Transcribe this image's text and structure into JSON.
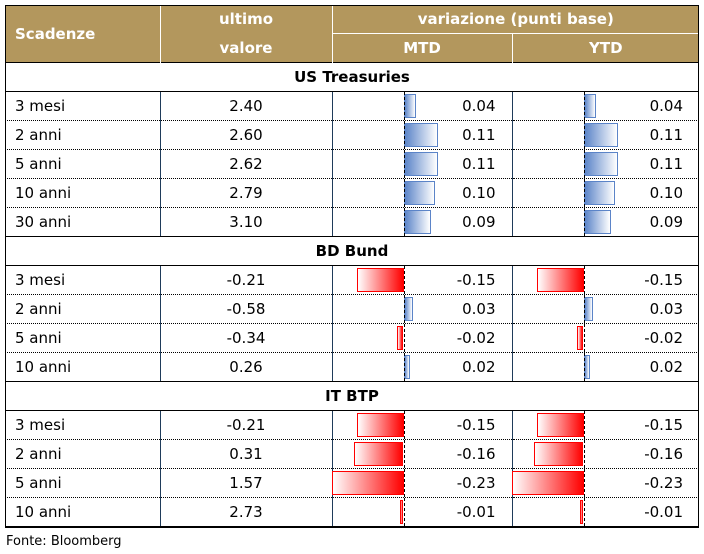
{
  "header": {
    "col1": "Scadenze",
    "col2_line1": "ultimo",
    "col2_line2": "valore",
    "group": "variazione (punti base)",
    "mtd": "MTD",
    "ytd": "YTD"
  },
  "colors": {
    "header_bg": "#b3975d",
    "positive_bar": "#5b84c8",
    "negative_bar": "#ff0000"
  },
  "sections": [
    {
      "title": "US Treasuries",
      "rows": [
        {
          "scadenza": "3 mesi",
          "valore": "2.40",
          "mtd": 0.04,
          "ytd": 0.04
        },
        {
          "scadenza": "2 anni",
          "valore": "2.60",
          "mtd": 0.11,
          "ytd": 0.11
        },
        {
          "scadenza": "5 anni",
          "valore": "2.62",
          "mtd": 0.11,
          "ytd": 0.11
        },
        {
          "scadenza": "10 anni",
          "valore": "2.79",
          "mtd": 0.1,
          "ytd": 0.1
        },
        {
          "scadenza": "30 anni",
          "valore": "3.10",
          "mtd": 0.09,
          "ytd": 0.09
        }
      ]
    },
    {
      "title": "BD Bund",
      "rows": [
        {
          "scadenza": "3 mesi",
          "valore": "-0.21",
          "mtd": -0.15,
          "ytd": -0.15
        },
        {
          "scadenza": "2 anni",
          "valore": "-0.58",
          "mtd": 0.03,
          "ytd": 0.03
        },
        {
          "scadenza": "5 anni",
          "valore": "-0.34",
          "mtd": -0.02,
          "ytd": -0.02
        },
        {
          "scadenza": "10 anni",
          "valore": "0.26",
          "mtd": 0.02,
          "ytd": 0.02
        }
      ]
    },
    {
      "title": "IT BTP",
      "rows": [
        {
          "scadenza": "3 mesi",
          "valore": "-0.21",
          "mtd": -0.15,
          "ytd": -0.15
        },
        {
          "scadenza": "2 anni",
          "valore": "0.31",
          "mtd": -0.16,
          "ytd": -0.16
        },
        {
          "scadenza": "5 anni",
          "valore": "1.57",
          "mtd": -0.23,
          "ytd": -0.23
        },
        {
          "scadenza": "10 anni",
          "valore": "2.73",
          "mtd": -0.01,
          "ytd": -0.01
        }
      ]
    }
  ],
  "source": "Fonte: Bloomberg"
}
